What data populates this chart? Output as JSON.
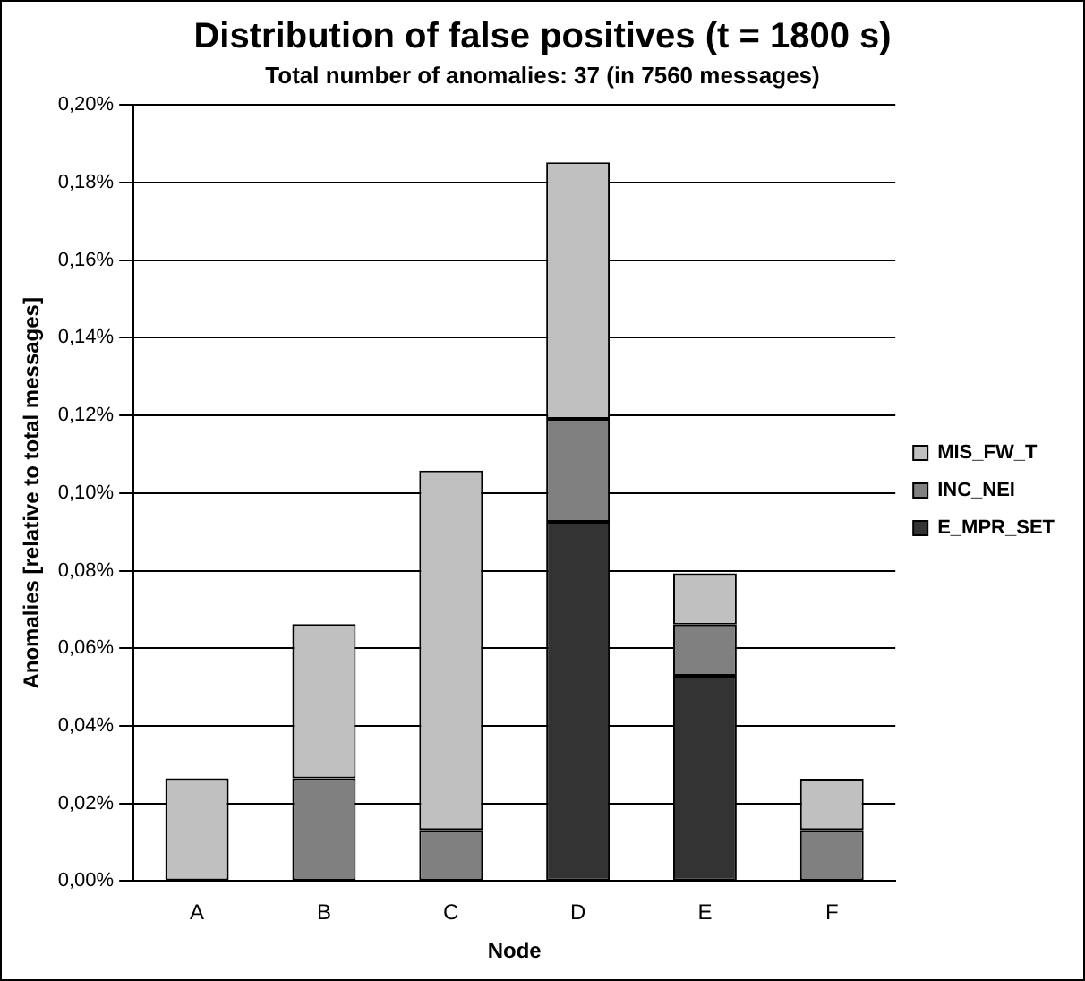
{
  "chart_data": {
    "type": "bar",
    "title": "Distribution of false positives (t = 1800 s)",
    "subtitle": "Total number of anomalies: 37 (in 7560 messages)",
    "xlabel": "Node",
    "ylabel": "Anomalies [relative to total messages]",
    "categories": [
      "A",
      "B",
      "C",
      "D",
      "E",
      "F"
    ],
    "stacked": true,
    "series": [
      {
        "name": "E_MPR_SET",
        "color": "#333333",
        "values": [
          null,
          null,
          null,
          0.0926,
          0.0529,
          null
        ]
      },
      {
        "name": "INC_NEI",
        "color": "#808080",
        "values": [
          null,
          0.0265,
          0.0132,
          0.0265,
          0.0132,
          0.0132
        ]
      },
      {
        "name": "MIS_FW_T",
        "color": "#c0c0c0",
        "values": [
          0.0265,
          0.0397,
          0.0926,
          0.0661,
          0.0132,
          0.0132
        ]
      }
    ],
    "ylim": [
      0,
      0.2
    ],
    "yticks": [
      {
        "value": 0,
        "label": "0,00%"
      },
      {
        "value": 0.02,
        "label": "0,02%"
      },
      {
        "value": 0.04,
        "label": "0,04%"
      },
      {
        "value": 0.06,
        "label": "0,06%"
      },
      {
        "value": 0.08,
        "label": "0,08%"
      },
      {
        "value": 0.1,
        "label": "0,10%"
      },
      {
        "value": 0.12,
        "label": "0,12%"
      },
      {
        "value": 0.14,
        "label": "0,14%"
      },
      {
        "value": 0.16,
        "label": "0,16%"
      },
      {
        "value": 0.18,
        "label": "0,18%"
      },
      {
        "value": 0.2,
        "label": "0,20%"
      }
    ],
    "grid": "y",
    "legend": "right"
  }
}
